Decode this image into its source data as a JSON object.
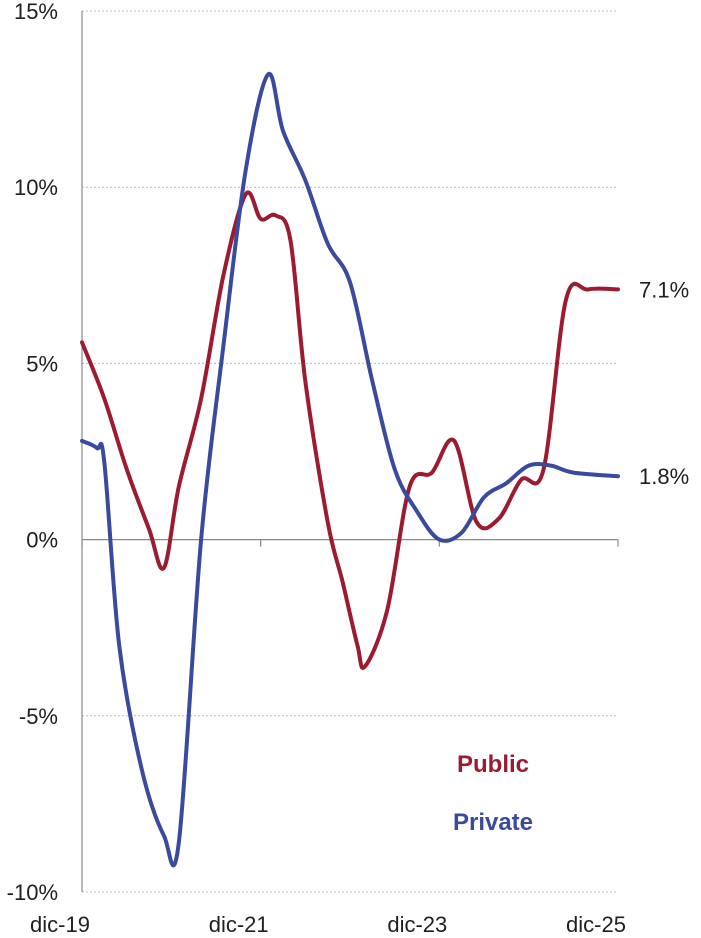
{
  "chart_data": {
    "type": "line",
    "title": "",
    "xlabel": "",
    "ylabel": "",
    "ylim": [
      -10,
      15
    ],
    "yticks": [
      15,
      10,
      5,
      0,
      -5,
      -10
    ],
    "ytick_labels": [
      "15%",
      "10%",
      "5%",
      "0%",
      "-5%",
      "-10%"
    ],
    "xlim": [
      "2019-12",
      "2025-12"
    ],
    "xticks": [
      "2019-12",
      "2021-12",
      "2023-12",
      "2025-12"
    ],
    "xtick_labels": [
      "dic-19",
      "dic-21",
      "dic-23",
      "dic-25"
    ],
    "grid": true,
    "legend": "bottom-right, inside plot",
    "series": [
      {
        "name": "Public",
        "color": "#9b1b30",
        "end_label": "7.1%",
        "points": [
          [
            "2019-12",
            5.6
          ],
          [
            "2020-03",
            4.0
          ],
          [
            "2020-06",
            2.0
          ],
          [
            "2020-09",
            0.3
          ],
          [
            "2020-11",
            -0.8
          ],
          [
            "2021-01",
            1.5
          ],
          [
            "2021-04",
            4.0
          ],
          [
            "2021-07",
            7.5
          ],
          [
            "2021-10",
            9.8
          ],
          [
            "2021-12",
            9.1
          ],
          [
            "2022-02",
            9.2
          ],
          [
            "2022-04",
            8.5
          ],
          [
            "2022-06",
            4.5
          ],
          [
            "2022-09",
            0.5
          ],
          [
            "2022-11",
            -1.2
          ],
          [
            "2023-01",
            -3.0
          ],
          [
            "2023-02",
            -3.6
          ],
          [
            "2023-05",
            -2.0
          ],
          [
            "2023-08",
            1.5
          ],
          [
            "2023-11",
            1.9
          ],
          [
            "2024-02",
            2.8
          ],
          [
            "2024-05",
            0.5
          ],
          [
            "2024-08",
            0.6
          ],
          [
            "2024-11",
            1.7
          ],
          [
            "2025-02",
            2.0
          ],
          [
            "2025-05",
            6.8
          ],
          [
            "2025-08",
            7.1
          ],
          [
            "2025-12",
            7.1
          ]
        ]
      },
      {
        "name": "Private",
        "color": "#3a4a9c",
        "end_label": "1.8%",
        "points": [
          [
            "2019-12",
            2.8
          ],
          [
            "2020-02",
            2.6
          ],
          [
            "2020-03",
            2.2
          ],
          [
            "2020-05",
            -3.0
          ],
          [
            "2020-08",
            -6.5
          ],
          [
            "2020-11",
            -8.4
          ],
          [
            "2021-01",
            -8.6
          ],
          [
            "2021-04",
            0.0
          ],
          [
            "2021-07",
            5.5
          ],
          [
            "2021-10",
            10.5
          ],
          [
            "2022-01",
            13.2
          ],
          [
            "2022-03",
            11.6
          ],
          [
            "2022-06",
            10.2
          ],
          [
            "2022-09",
            8.4
          ],
          [
            "2022-12",
            7.3
          ],
          [
            "2023-03",
            4.5
          ],
          [
            "2023-06",
            2.0
          ],
          [
            "2023-09",
            0.8
          ],
          [
            "2023-12",
            0.0
          ],
          [
            "2024-03",
            0.2
          ],
          [
            "2024-06",
            1.2
          ],
          [
            "2024-09",
            1.6
          ],
          [
            "2024-12",
            2.1
          ],
          [
            "2025-03",
            2.1
          ],
          [
            "2025-06",
            1.9
          ],
          [
            "2025-12",
            1.8
          ]
        ]
      }
    ]
  }
}
